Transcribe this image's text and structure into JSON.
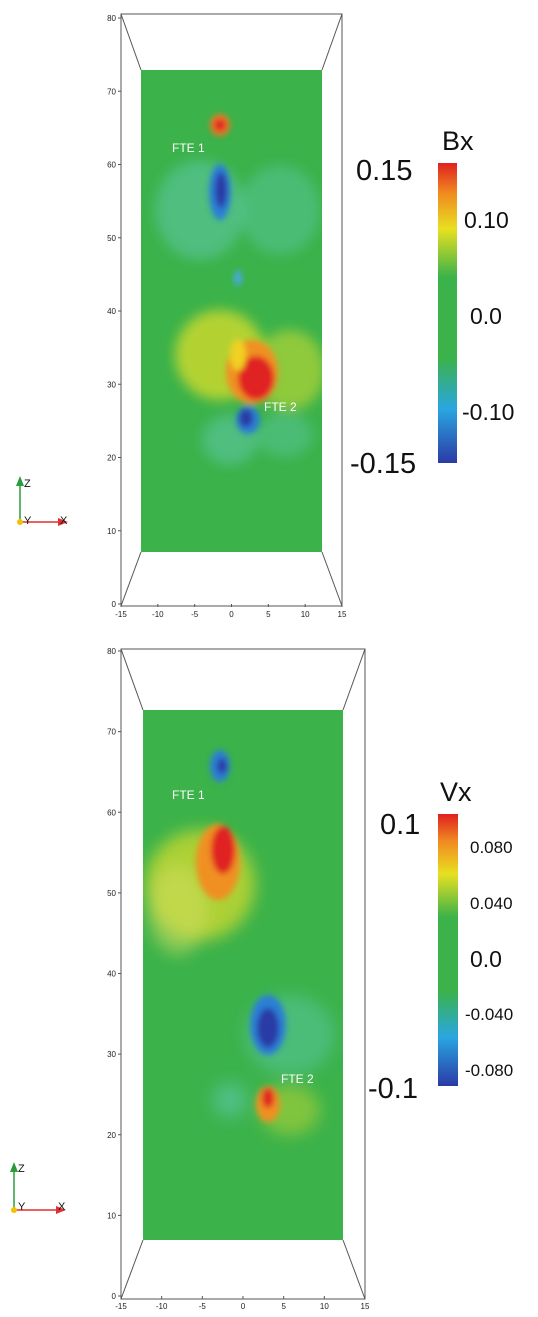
{
  "panels": [
    {
      "id": "bx",
      "colorbar": {
        "title": "Bx",
        "max_label": "0.15",
        "min_label": "-0.15",
        "labels": [
          "0.10",
          "0.0",
          "-0.10"
        ],
        "range": [
          -0.15,
          0.15
        ]
      },
      "annotations": [
        "FTE 1",
        "FTE 2"
      ],
      "x_ticks": [
        "-15",
        "-10",
        "-5",
        "0",
        "5",
        "10",
        "15"
      ],
      "z_ticks": [
        "0",
        "10",
        "20",
        "30",
        "40",
        "50",
        "60",
        "70",
        "80"
      ],
      "triad": {
        "z": "Z",
        "y": "Y",
        "x": "X"
      }
    },
    {
      "id": "vx",
      "colorbar": {
        "title": "Vx",
        "max_label": "0.1",
        "min_label": "-0.1",
        "labels": [
          "0.080",
          "0.040",
          "0.0",
          "-0.040",
          "-0.080"
        ],
        "range": [
          -0.1,
          0.1
        ]
      },
      "annotations": [
        "FTE 1",
        "FTE 2"
      ],
      "x_ticks": [
        "-15",
        "-10",
        "-5",
        "0",
        "5",
        "10",
        "15"
      ],
      "z_ticks": [
        "0",
        "10",
        "20",
        "30",
        "40",
        "50",
        "60",
        "70",
        "80"
      ],
      "triad": {
        "z": "Z",
        "y": "Y",
        "x": "X"
      }
    }
  ],
  "colors": {
    "background_field": "#3bb24a",
    "frame": "#444444",
    "triad_z": "#2a9d3a",
    "triad_x": "#e03030",
    "triad_origin": "#f2c200"
  }
}
